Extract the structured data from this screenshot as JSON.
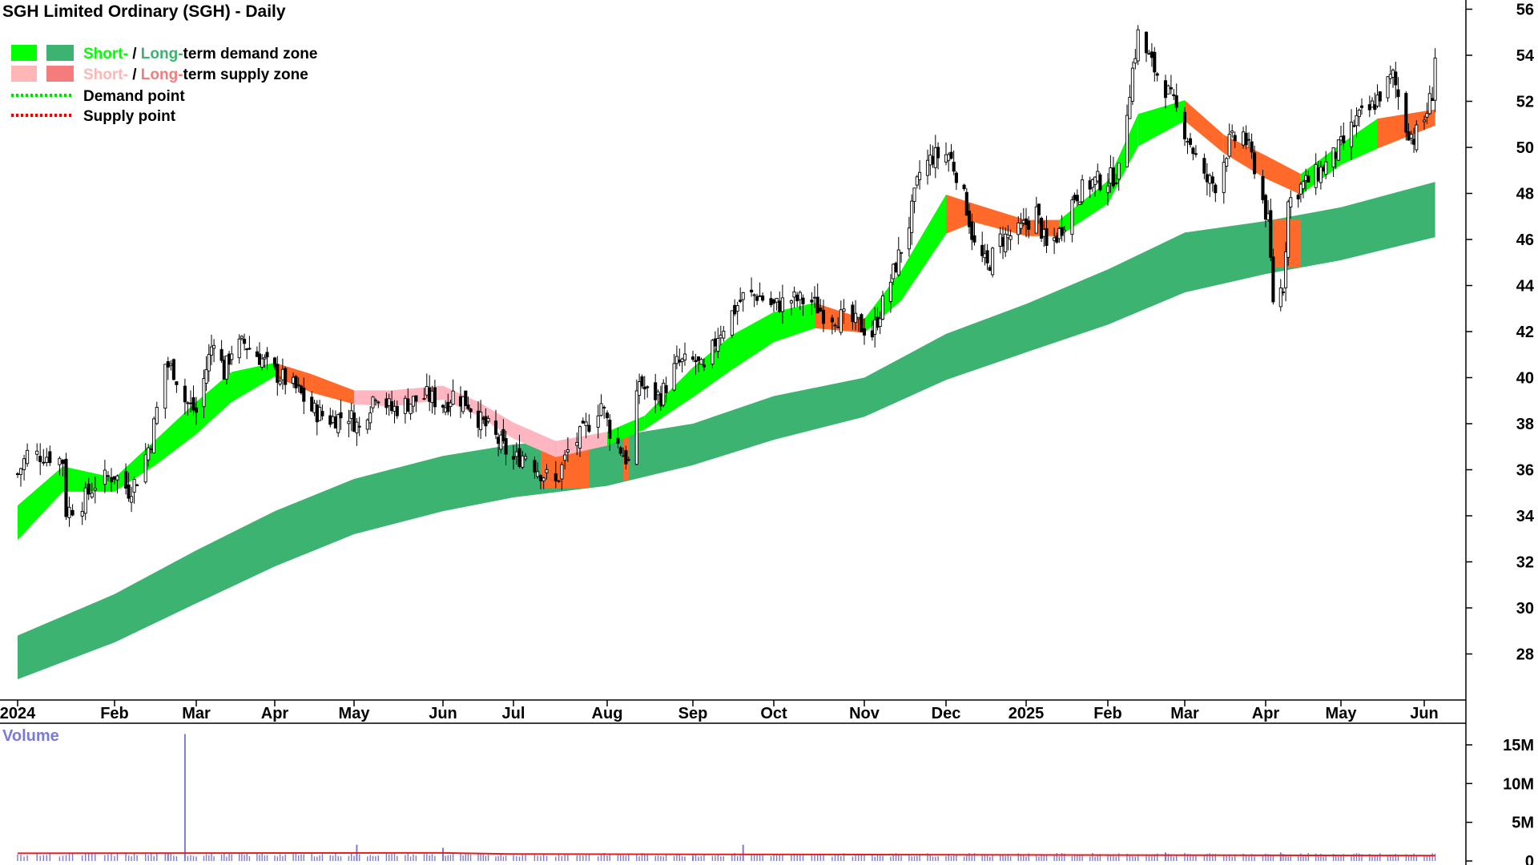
{
  "chart_data": {
    "type": "candlestick",
    "title": "SGH Limited Ordinary (SGH) - Daily",
    "price_axis": {
      "min": 26,
      "max": 56.4,
      "ticks": [
        28,
        30,
        32,
        34,
        36,
        38,
        40,
        42,
        44,
        46,
        48,
        50,
        52,
        54,
        56
      ]
    },
    "volume_axis": {
      "label": "Volume",
      "min": 0,
      "max": 15000000,
      "ticks": [
        {
          "value": 0,
          "label": "0"
        },
        {
          "value": 5000000,
          "label": "5M"
        },
        {
          "value": 10000000,
          "label": "10M"
        },
        {
          "value": 15000000,
          "label": "15M"
        }
      ]
    },
    "x_axis": {
      "months": [
        {
          "label": "2024",
          "date": "2024-01-02"
        },
        {
          "label": "Feb",
          "date": "2024-02-01"
        },
        {
          "label": "Mar",
          "date": "2024-03-01"
        },
        {
          "label": "Apr",
          "date": "2024-04-01"
        },
        {
          "label": "May",
          "date": "2024-05-01"
        },
        {
          "label": "Jun",
          "date": "2024-06-03"
        },
        {
          "label": "Jul",
          "date": "2024-07-01"
        },
        {
          "label": "Aug",
          "date": "2024-08-01"
        },
        {
          "label": "Sep",
          "date": "2024-09-02"
        },
        {
          "label": "Oct",
          "date": "2024-10-01"
        },
        {
          "label": "Nov",
          "date": "2024-11-01"
        },
        {
          "label": "Dec",
          "date": "2024-12-02"
        },
        {
          "label": "2025",
          "date": "2025-01-02"
        },
        {
          "label": "Feb",
          "date": "2025-02-03"
        },
        {
          "label": "Mar",
          "date": "2025-03-03"
        },
        {
          "label": "Apr",
          "date": "2025-04-01"
        },
        {
          "label": "May",
          "date": "2025-05-01"
        },
        {
          "label": "Jun",
          "date": "2025-06-02"
        }
      ]
    },
    "close_path": [
      [
        "2024-01-02",
        35.8
      ],
      [
        "2024-01-05",
        36.7
      ],
      [
        "2024-01-12",
        36.6
      ],
      [
        "2024-01-16",
        36.4
      ],
      [
        "2024-01-17",
        34.2
      ],
      [
        "2024-01-22",
        34.6
      ],
      [
        "2024-01-26",
        35.4
      ],
      [
        "2024-02-01",
        35.8
      ],
      [
        "2024-02-06",
        35.1
      ],
      [
        "2024-02-09",
        35.6
      ],
      [
        "2024-02-14",
        37.3
      ],
      [
        "2024-02-16",
        38.6
      ],
      [
        "2024-02-19",
        40.6
      ],
      [
        "2024-02-22",
        40.3
      ],
      [
        "2024-02-26",
        39.0
      ],
      [
        "2024-03-01",
        38.5
      ],
      [
        "2024-03-05",
        40.4
      ],
      [
        "2024-03-08",
        41.8
      ],
      [
        "2024-03-12",
        40.2
      ],
      [
        "2024-03-15",
        41.2
      ],
      [
        "2024-03-20",
        41.5
      ],
      [
        "2024-03-26",
        40.9
      ],
      [
        "2024-04-01",
        40.2
      ],
      [
        "2024-04-05",
        39.9
      ],
      [
        "2024-04-10",
        39.4
      ],
      [
        "2024-04-15",
        38.6
      ],
      [
        "2024-04-22",
        38.2
      ],
      [
        "2024-04-29",
        38.4
      ],
      [
        "2024-05-03",
        37.8
      ],
      [
        "2024-05-09",
        39.4
      ],
      [
        "2024-05-15",
        38.6
      ],
      [
        "2024-05-21",
        38.9
      ],
      [
        "2024-05-28",
        39.2
      ],
      [
        "2024-06-04",
        38.8
      ],
      [
        "2024-06-07",
        39.3
      ],
      [
        "2024-06-13",
        38.9
      ],
      [
        "2024-06-18",
        38.1
      ],
      [
        "2024-06-21",
        37.8
      ],
      [
        "2024-06-26",
        37.1
      ],
      [
        "2024-07-01",
        36.4
      ],
      [
        "2024-07-05",
        36.7
      ],
      [
        "2024-07-10",
        35.9
      ],
      [
        "2024-07-15",
        35.4
      ],
      [
        "2024-07-19",
        36.8
      ],
      [
        "2024-07-24",
        37.6
      ],
      [
        "2024-07-30",
        38.9
      ],
      [
        "2024-08-02",
        37.7
      ],
      [
        "2024-08-06",
        36.9
      ],
      [
        "2024-08-09",
        36.3
      ],
      [
        "2024-08-13",
        39.9
      ],
      [
        "2024-08-16",
        39.3
      ],
      [
        "2024-08-21",
        39.2
      ],
      [
        "2024-08-27",
        40.6
      ],
      [
        "2024-09-03",
        40.7
      ],
      [
        "2024-09-06",
        40.2
      ],
      [
        "2024-09-11",
        41.9
      ],
      [
        "2024-09-16",
        42.8
      ],
      [
        "2024-09-20",
        43.5
      ],
      [
        "2024-09-25",
        43.6
      ],
      [
        "2024-10-01",
        43.1
      ],
      [
        "2024-10-07",
        43.4
      ],
      [
        "2024-10-14",
        43.3
      ],
      [
        "2024-10-18",
        42.8
      ],
      [
        "2024-10-24",
        42.6
      ],
      [
        "2024-10-30",
        42.3
      ],
      [
        "2024-11-04",
        41.9
      ],
      [
        "2024-11-08",
        43.2
      ],
      [
        "2024-11-13",
        44.9
      ],
      [
        "2024-11-18",
        46.7
      ],
      [
        "2024-11-22",
        48.9
      ],
      [
        "2024-11-27",
        49.6
      ],
      [
        "2024-12-03",
        49.7
      ],
      [
        "2024-12-06",
        48.9
      ],
      [
        "2024-12-10",
        47.4
      ],
      [
        "2024-12-13",
        45.7
      ],
      [
        "2024-12-18",
        44.8
      ],
      [
        "2024-12-23",
        46.0
      ],
      [
        "2024-12-30",
        46.3
      ],
      [
        "2025-01-06",
        47.2
      ],
      [
        "2025-01-10",
        45.6
      ],
      [
        "2025-01-15",
        46.3
      ],
      [
        "2025-01-21",
        47.9
      ],
      [
        "2025-01-28",
        48.5
      ],
      [
        "2025-02-03",
        48.6
      ],
      [
        "2025-02-07",
        48.9
      ],
      [
        "2025-02-11",
        52.6
      ],
      [
        "2025-02-14",
        54.9
      ],
      [
        "2025-02-19",
        53.6
      ],
      [
        "2025-02-24",
        52.6
      ],
      [
        "2025-02-28",
        51.6
      ],
      [
        "2025-03-05",
        50.2
      ],
      [
        "2025-03-10",
        48.6
      ],
      [
        "2025-03-14",
        48.4
      ],
      [
        "2025-03-19",
        50.2
      ],
      [
        "2025-03-24",
        50.6
      ],
      [
        "2025-03-28",
        49.2
      ],
      [
        "2025-04-02",
        46.7
      ],
      [
        "2025-04-04",
        43.4
      ],
      [
        "2025-04-08",
        44.0
      ],
      [
        "2025-04-10",
        47.6
      ],
      [
        "2025-04-15",
        48.3
      ],
      [
        "2025-04-22",
        48.9
      ],
      [
        "2025-04-28",
        49.6
      ],
      [
        "2025-05-02",
        50.2
      ],
      [
        "2025-05-07",
        51.2
      ],
      [
        "2025-05-12",
        51.6
      ],
      [
        "2025-05-16",
        52.3
      ],
      [
        "2025-05-21",
        53.1
      ],
      [
        "2025-05-26",
        50.9
      ],
      [
        "2025-05-29",
        50.4
      ],
      [
        "2025-06-02",
        51.2
      ],
      [
        "2025-06-05",
        52.4
      ],
      [
        "2025-06-06",
        54.0
      ]
    ],
    "short_term_zone": [
      [
        "2024-01-02",
        33.2,
        34.2
      ],
      [
        "2024-01-16",
        35.3,
        35.9
      ],
      [
        "2024-02-01",
        35.3,
        35.4
      ],
      [
        "2024-02-16",
        36.5,
        37.1
      ],
      [
        "2024-03-01",
        37.8,
        38.7
      ],
      [
        "2024-03-15",
        39.2,
        40.0
      ],
      [
        "2024-04-01",
        40.4,
        40.3
      ],
      [
        "2024-04-15",
        39.6,
        39.9
      ],
      [
        "2024-05-01",
        39.2,
        39.1
      ],
      [
        "2024-05-15",
        39.0,
        39.2
      ],
      [
        "2024-06-03",
        39.3,
        39.4
      ],
      [
        "2024-06-17",
        38.6,
        38.7
      ],
      [
        "2024-07-01",
        37.6,
        37.8
      ],
      [
        "2024-07-15",
        36.8,
        37.0
      ],
      [
        "2024-08-01",
        37.3,
        37.4
      ],
      [
        "2024-08-15",
        38.0,
        38.1
      ],
      [
        "2024-09-02",
        39.4,
        40.2
      ],
      [
        "2024-09-16",
        40.6,
        41.6
      ],
      [
        "2024-10-01",
        41.8,
        42.6
      ],
      [
        "2024-10-15",
        42.4,
        43.0
      ],
      [
        "2024-11-01",
        42.2,
        42.3
      ],
      [
        "2024-11-15",
        43.6,
        44.4
      ],
      [
        "2024-12-02",
        46.5,
        47.7
      ],
      [
        "2024-12-13",
        47.0,
        47.3
      ],
      [
        "2025-01-02",
        46.4,
        46.6
      ],
      [
        "2025-01-15",
        46.4,
        46.6
      ],
      [
        "2025-02-03",
        47.8,
        48.3
      ],
      [
        "2025-02-14",
        50.3,
        51.2
      ],
      [
        "2025-03-03",
        51.4,
        51.8
      ],
      [
        "2025-03-17",
        50.0,
        50.3
      ],
      [
        "2025-04-01",
        48.9,
        49.4
      ],
      [
        "2025-04-15",
        48.2,
        48.6
      ],
      [
        "2025-05-01",
        49.5,
        49.9
      ],
      [
        "2025-05-15",
        50.2,
        51.0
      ],
      [
        "2025-06-06",
        51.2,
        51.4
      ]
    ],
    "long_term_zone": [
      [
        "2024-01-02",
        26.9,
        28.8
      ],
      [
        "2024-02-01",
        28.5,
        30.6
      ],
      [
        "2024-03-01",
        30.2,
        32.5
      ],
      [
        "2024-04-01",
        31.8,
        34.2
      ],
      [
        "2024-05-01",
        33.2,
        35.6
      ],
      [
        "2024-06-03",
        34.2,
        36.6
      ],
      [
        "2024-07-01",
        34.8,
        37.1
      ],
      [
        "2024-08-01",
        35.3,
        37.4
      ],
      [
        "2024-09-02",
        36.2,
        38.0
      ],
      [
        "2024-10-01",
        37.3,
        39.2
      ],
      [
        "2024-11-01",
        38.3,
        40.0
      ],
      [
        "2024-12-02",
        39.9,
        41.9
      ],
      [
        "2025-01-02",
        41.1,
        43.2
      ],
      [
        "2025-02-03",
        42.3,
        44.7
      ],
      [
        "2025-03-03",
        43.7,
        46.3
      ],
      [
        "2025-04-01",
        44.5,
        46.8
      ],
      [
        "2025-05-01",
        45.1,
        47.4
      ],
      [
        "2025-06-06",
        46.1,
        48.5
      ]
    ],
    "volume_spikes": [
      [
        "2024-02-26",
        16400000
      ],
      [
        "2024-02-20",
        1000000
      ],
      [
        "2024-05-02",
        2100000
      ],
      [
        "2024-06-03",
        1700000
      ],
      [
        "2024-09-02",
        600000
      ],
      [
        "2024-09-20",
        2100000
      ],
      [
        "2025-02-24",
        1100000
      ],
      [
        "2025-04-07",
        1100000
      ]
    ],
    "volume_baseline": 800000,
    "legend": [
      {
        "short_label": "Short-",
        "separator": " / ",
        "long_label": "Long-",
        "suffix": "term demand zone",
        "short_color": "#00ff00",
        "long_color": "#3cb371"
      },
      {
        "short_label": "Short-",
        "separator": " / ",
        "long_label": "Long-",
        "suffix": "term supply zone",
        "short_color": "#ffb6b6",
        "long_color": "#f47c7c"
      },
      {
        "label": "Demand point",
        "color": "#00dd00"
      },
      {
        "label": "Supply point",
        "color": "#ee0000"
      }
    ],
    "colors": {
      "demand_short": "#00ff00",
      "demand_long": "#3cb371",
      "supply_short": "#ffb6c1",
      "supply_long": "#ff6a2a",
      "volume_bar": "#7b7bd6",
      "volume_ma": "#e02020"
    }
  }
}
